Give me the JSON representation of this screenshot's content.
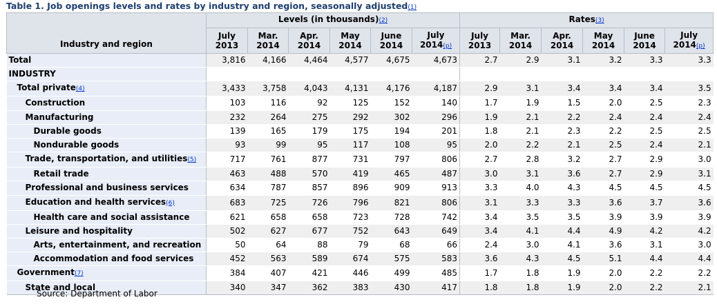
{
  "title": "Table 1. Job openings levels and rates by industry and region, seasonally adjusted",
  "title_fn": "(1)",
  "header": {
    "stub_label": "Industry and region",
    "levels_label": "Levels (in thousands)",
    "levels_fn": "(2)",
    "rates_label": "Rates",
    "rates_fn": "(3)",
    "columns": [
      {
        "line1": "July",
        "line2": "2013",
        "fn": ""
      },
      {
        "line1": "Mar.",
        "line2": "2014",
        "fn": ""
      },
      {
        "line1": "Apr.",
        "line2": "2014",
        "fn": ""
      },
      {
        "line1": "May",
        "line2": "2014",
        "fn": ""
      },
      {
        "line1": "June",
        "line2": "2014",
        "fn": ""
      },
      {
        "line1": "July",
        "line2": "2014",
        "fn": "(p)"
      }
    ]
  },
  "rows": [
    {
      "label": "Total",
      "fn": "",
      "indent": 0,
      "levels": [
        "3,816",
        "4,166",
        "4,464",
        "4,577",
        "4,675",
        "4,673"
      ],
      "rates": [
        "2.7",
        "2.9",
        "3.1",
        "3.2",
        "3.3",
        "3.3"
      ]
    },
    {
      "label": "INDUSTRY",
      "fn": "",
      "indent": 0,
      "levels": [
        "",
        "",
        "",
        "",
        "",
        ""
      ],
      "rates": [
        "",
        "",
        "",
        "",
        "",
        ""
      ]
    },
    {
      "label": "Total private",
      "fn": "(4)",
      "indent": 1,
      "levels": [
        "3,433",
        "3,758",
        "4,043",
        "4,131",
        "4,176",
        "4,187"
      ],
      "rates": [
        "2.9",
        "3.1",
        "3.4",
        "3.4",
        "3.4",
        "3.5"
      ]
    },
    {
      "label": "Construction",
      "fn": "",
      "indent": 2,
      "levels": [
        "103",
        "116",
        "92",
        "125",
        "152",
        "140"
      ],
      "rates": [
        "1.7",
        "1.9",
        "1.5",
        "2.0",
        "2.5",
        "2.3"
      ]
    },
    {
      "label": "Manufacturing",
      "fn": "",
      "indent": 2,
      "levels": [
        "232",
        "264",
        "275",
        "292",
        "302",
        "296"
      ],
      "rates": [
        "1.9",
        "2.1",
        "2.2",
        "2.4",
        "2.4",
        "2.4"
      ]
    },
    {
      "label": "Durable goods",
      "fn": "",
      "indent": 3,
      "levels": [
        "139",
        "165",
        "179",
        "175",
        "194",
        "201"
      ],
      "rates": [
        "1.8",
        "2.1",
        "2.3",
        "2.2",
        "2.5",
        "2.5"
      ]
    },
    {
      "label": "Nondurable goods",
      "fn": "",
      "indent": 3,
      "levels": [
        "93",
        "99",
        "95",
        "117",
        "108",
        "95"
      ],
      "rates": [
        "2.0",
        "2.2",
        "2.1",
        "2.5",
        "2.4",
        "2.1"
      ]
    },
    {
      "label": "Trade, transportation, and utilities",
      "fn": "(5)",
      "indent": 2,
      "levels": [
        "717",
        "761",
        "877",
        "731",
        "797",
        "806"
      ],
      "rates": [
        "2.7",
        "2.8",
        "3.2",
        "2.7",
        "2.9",
        "3.0"
      ]
    },
    {
      "label": "Retail trade",
      "fn": "",
      "indent": 3,
      "levels": [
        "463",
        "488",
        "570",
        "419",
        "465",
        "487"
      ],
      "rates": [
        "3.0",
        "3.1",
        "3.6",
        "2.7",
        "2.9",
        "3.1"
      ]
    },
    {
      "label": "Professional and business services",
      "fn": "",
      "indent": 2,
      "levels": [
        "634",
        "787",
        "857",
        "896",
        "909",
        "913"
      ],
      "rates": [
        "3.3",
        "4.0",
        "4.3",
        "4.5",
        "4.5",
        "4.5"
      ]
    },
    {
      "label": "Education and health services",
      "fn": "(6)",
      "indent": 2,
      "levels": [
        "683",
        "725",
        "726",
        "796",
        "821",
        "806"
      ],
      "rates": [
        "3.1",
        "3.3",
        "3.3",
        "3.6",
        "3.7",
        "3.6"
      ]
    },
    {
      "label": "Health care and social assistance",
      "fn": "",
      "indent": 3,
      "levels": [
        "621",
        "658",
        "658",
        "723",
        "728",
        "742"
      ],
      "rates": [
        "3.4",
        "3.5",
        "3.5",
        "3.9",
        "3.9",
        "3.9"
      ]
    },
    {
      "label": "Leisure and hospitality",
      "fn": "",
      "indent": 2,
      "levels": [
        "502",
        "627",
        "677",
        "752",
        "643",
        "649"
      ],
      "rates": [
        "3.4",
        "4.1",
        "4.4",
        "4.9",
        "4.2",
        "4.2"
      ]
    },
    {
      "label": "Arts, entertainment, and recreation",
      "fn": "",
      "indent": 3,
      "levels": [
        "50",
        "64",
        "88",
        "79",
        "68",
        "66"
      ],
      "rates": [
        "2.4",
        "3.0",
        "4.1",
        "3.6",
        "3.1",
        "3.0"
      ]
    },
    {
      "label": "Accommodation and food services",
      "fn": "",
      "indent": 3,
      "levels": [
        "452",
        "563",
        "589",
        "674",
        "575",
        "583"
      ],
      "rates": [
        "3.6",
        "4.3",
        "4.5",
        "5.1",
        "4.4",
        "4.4"
      ]
    },
    {
      "label": "Government",
      "fn": "(7)",
      "indent": 1,
      "levels": [
        "384",
        "407",
        "421",
        "446",
        "499",
        "485"
      ],
      "rates": [
        "1.7",
        "1.8",
        "1.9",
        "2.0",
        "2.2",
        "2.2"
      ]
    },
    {
      "label": "State and local",
      "fn": "",
      "indent": 2,
      "levels": [
        "340",
        "347",
        "362",
        "383",
        "430",
        "417"
      ],
      "rates": [
        "1.8",
        "1.8",
        "1.9",
        "2.0",
        "2.2",
        "2.1"
      ]
    }
  ],
  "source": "Source: Department of Labor"
}
